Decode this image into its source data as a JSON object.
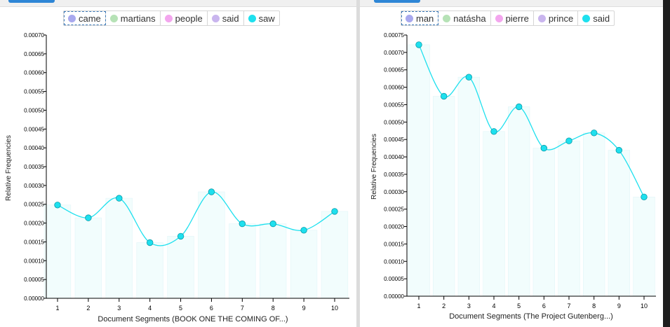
{
  "charts": [
    {
      "legend": [
        {
          "label": "came",
          "color": "#a9a9ee",
          "active": true
        },
        {
          "label": "martians",
          "color": "#b6e2b6",
          "active": false
        },
        {
          "label": "people",
          "color": "#f3a6ee",
          "active": false
        },
        {
          "label": "said",
          "color": "#c9b5ee",
          "active": false
        },
        {
          "label": "saw",
          "color": "#1ee0ee",
          "active": false
        }
      ]
    },
    {
      "legend": [
        {
          "label": "man",
          "color": "#a9a9ee",
          "active": true
        },
        {
          "label": "natásha",
          "color": "#b6e2b6",
          "active": false
        },
        {
          "label": "pierre",
          "color": "#f3a6ee",
          "active": false
        },
        {
          "label": "prince",
          "color": "#c9b5ee",
          "active": false
        },
        {
          "label": "said",
          "color": "#1ee0ee",
          "active": false
        }
      ]
    }
  ],
  "chart_data": [
    {
      "type": "line",
      "xlabel": "Document Segments (BOOK ONE THE COMING OF...)",
      "ylabel": "Relative Frequencies",
      "x": [
        1,
        2,
        3,
        4,
        5,
        6,
        7,
        8,
        9,
        10
      ],
      "y_ticks": [
        "0.00000",
        "0.00005",
        "0.00010",
        "0.00015",
        "0.00020",
        "0.00025",
        "0.00030",
        "0.00035",
        "0.00040",
        "0.00045",
        "0.00050",
        "0.00055",
        "0.00060",
        "0.00065",
        "0.00070"
      ],
      "ylim": [
        0,
        0.0007
      ],
      "color": "#1ee0ee",
      "series": [
        {
          "values": [
            0.000248,
            0.000214,
            0.000266,
            0.000148,
            0.000165,
            0.000283,
            0.000198,
            0.000198,
            0.000181,
            0.000231
          ]
        }
      ]
    },
    {
      "type": "line",
      "xlabel": "Document Segments (The Project Gutenberg...)",
      "ylabel": "Relative Frequencies",
      "x": [
        1,
        2,
        3,
        4,
        5,
        6,
        7,
        8,
        9,
        10
      ],
      "y_ticks": [
        "0.00000",
        "0.00005",
        "0.00010",
        "0.00015",
        "0.00020",
        "0.00025",
        "0.00030",
        "0.00035",
        "0.00040",
        "0.00045",
        "0.00050",
        "0.00055",
        "0.00060",
        "0.00065",
        "0.00070",
        "0.00075"
      ],
      "ylim": [
        0,
        0.00075
      ],
      "color": "#1ee0ee",
      "series": [
        {
          "values": [
            0.000722,
            0.000574,
            0.000629,
            0.000473,
            0.000544,
            0.000425,
            0.000446,
            0.000469,
            0.000419,
            0.000285
          ]
        }
      ]
    }
  ]
}
